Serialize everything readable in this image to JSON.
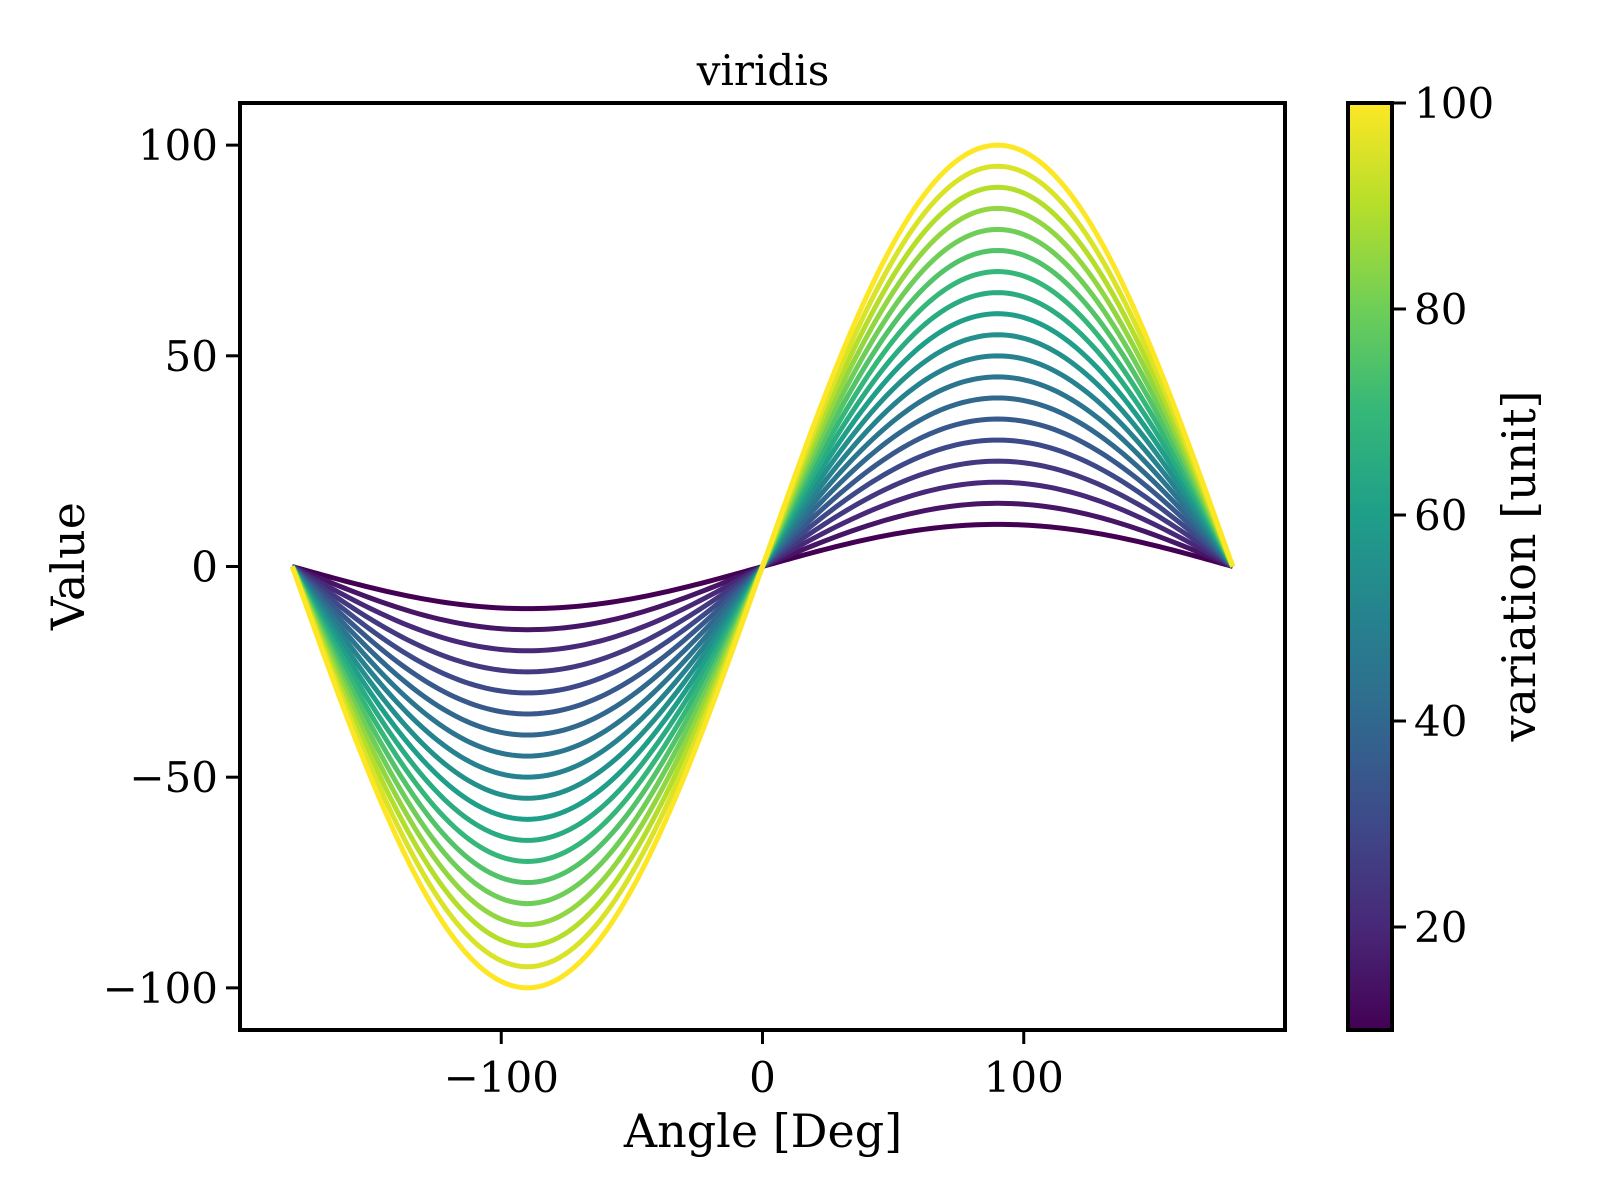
{
  "chart_data": {
    "type": "line",
    "title": "viridis",
    "xlabel": "Angle [Deg]",
    "ylabel": "Value",
    "xlim": [
      -200,
      200
    ],
    "ylim": [
      -110,
      110
    ],
    "xticks": [
      -100,
      0,
      100
    ],
    "xtick_labels": [
      "−100",
      "0",
      "100"
    ],
    "yticks": [
      100,
      50,
      0,
      -50,
      -100
    ],
    "ytick_labels": [
      "100",
      "50",
      "0",
      "−50",
      "−100"
    ],
    "x_range": [
      -180,
      180
    ],
    "function": "amplitude * sin(angle)",
    "amplitudes": [
      10,
      15,
      20,
      25,
      30,
      35,
      40,
      45,
      50,
      55,
      60,
      65,
      70,
      75,
      80,
      85,
      90,
      95,
      100
    ],
    "colormap": "viridis",
    "grid": false,
    "colorbar": {
      "label": "variation [unit]",
      "range": [
        10,
        100
      ],
      "ticks": [
        20,
        40,
        60,
        80,
        100
      ],
      "tick_labels": [
        "20",
        "40",
        "60",
        "80",
        "100"
      ],
      "colors": [
        "#440154",
        "#482878",
        "#3e4989",
        "#31688e",
        "#26828e",
        "#1f9e89",
        "#35b779",
        "#6ece58",
        "#b5de2b",
        "#fde725"
      ]
    }
  }
}
